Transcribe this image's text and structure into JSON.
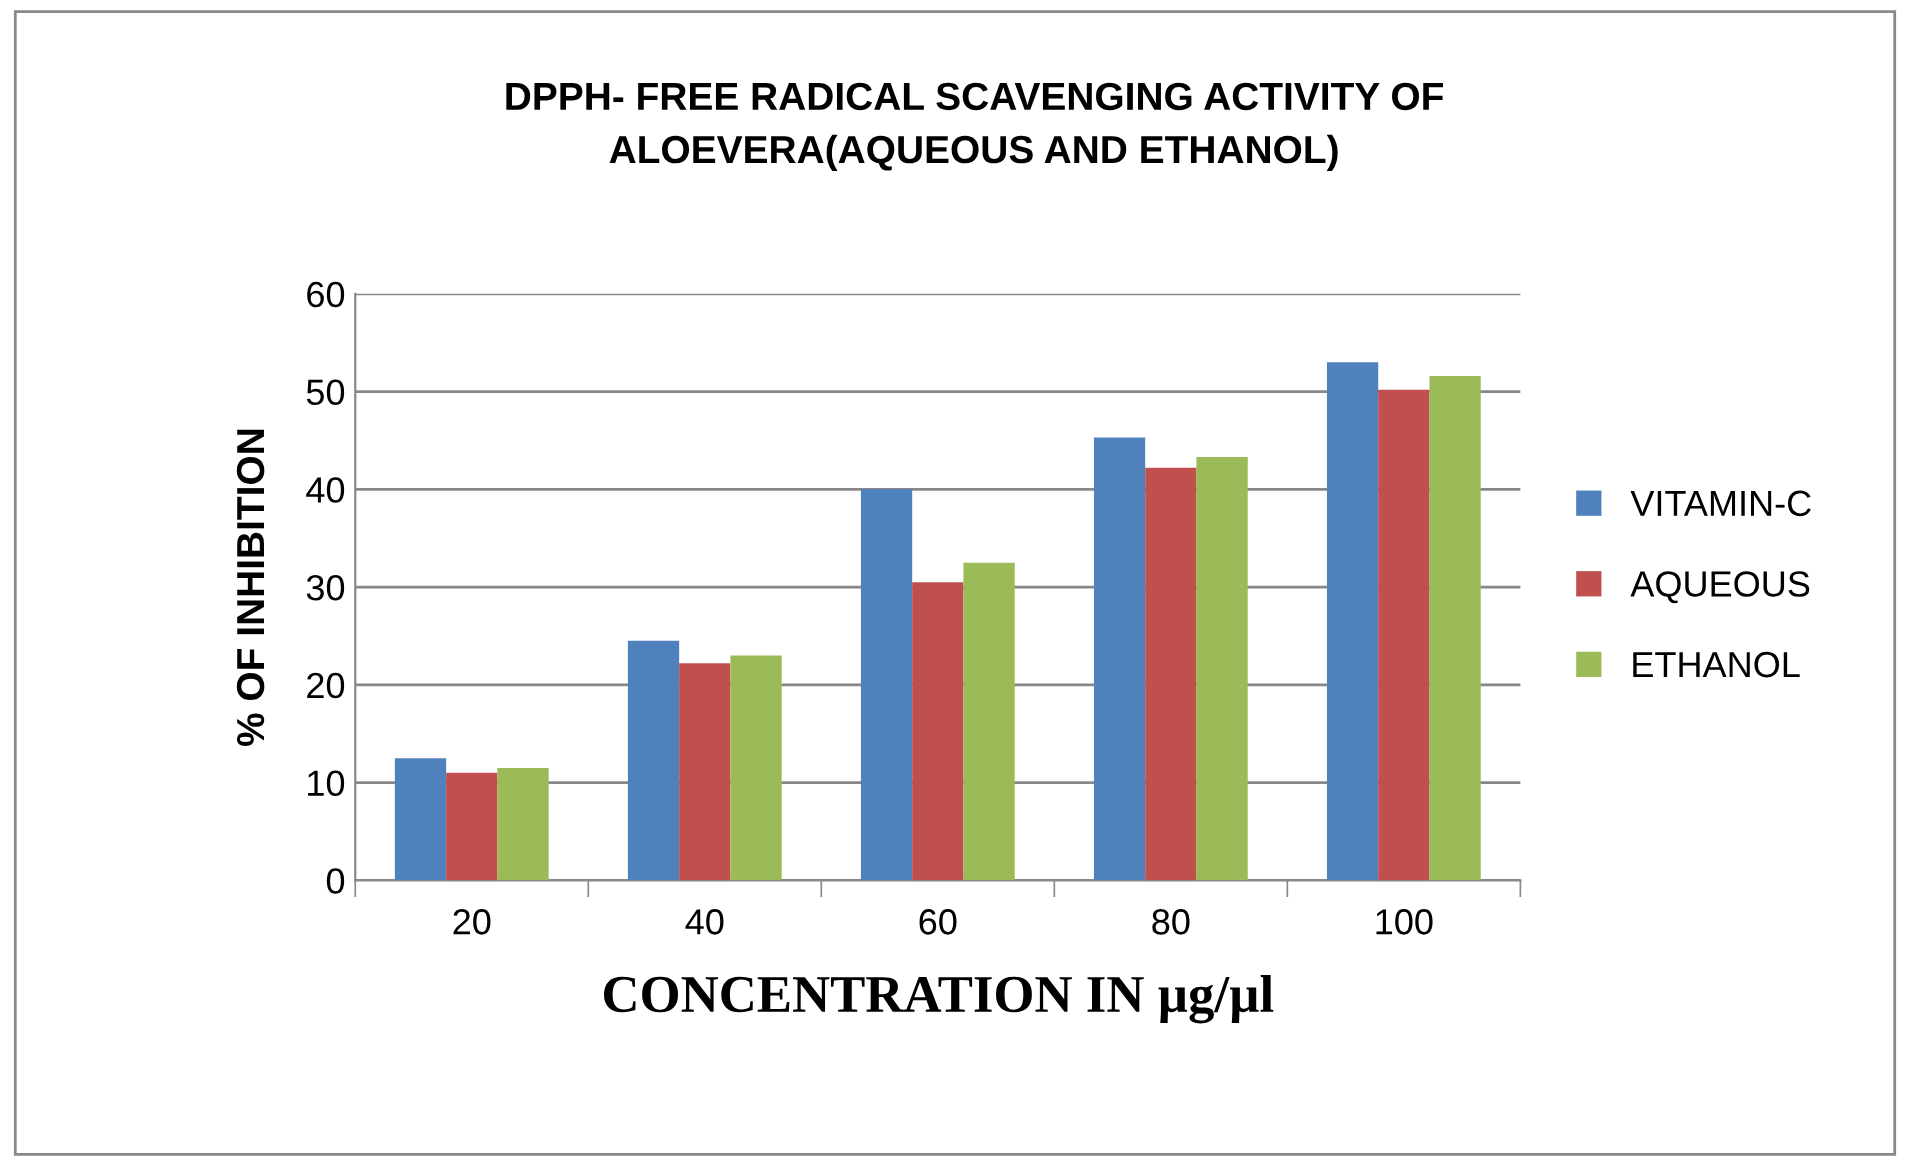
{
  "chart_data": {
    "type": "bar",
    "title": "DPPH- FREE RADICAL SCAVENGING ACTIVITY OF\nALOEVERA(AQUEOUS AND ETHANOL)",
    "xlabel": "CONCENTRATION IN µg/µl",
    "ylabel": "% OF INHIBITION",
    "categories": [
      "20",
      "40",
      "60",
      "80",
      "100"
    ],
    "series": [
      {
        "name": "VITAMIN-C",
        "color": "#4f81bd",
        "values": [
          12.5,
          24.5,
          40,
          45.3,
          53
        ]
      },
      {
        "name": "AQUEOUS",
        "color": "#c0504d",
        "values": [
          11,
          22.2,
          30.5,
          42.2,
          50.2
        ]
      },
      {
        "name": "ETHANOL",
        "color": "#9bbb59",
        "values": [
          11.5,
          23,
          32.5,
          43.3,
          51.6
        ]
      }
    ],
    "ylim": [
      0,
      60
    ],
    "yticks": [
      0,
      10,
      20,
      30,
      40,
      50,
      60
    ],
    "grid": "y",
    "legend": "right"
  }
}
